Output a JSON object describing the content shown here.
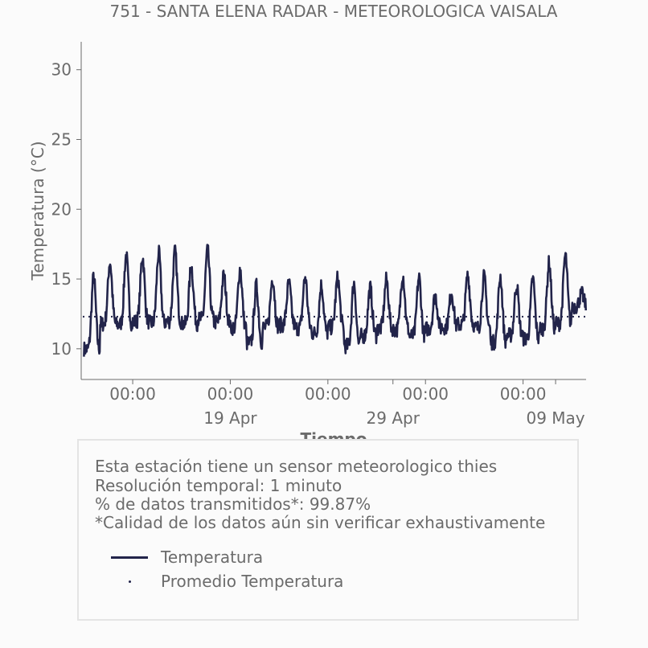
{
  "chart_data": {
    "type": "line",
    "title": "751 - SANTA ELENA RADAR - METEOROLOGICA VAISALA",
    "xlabel": "Tiempo",
    "ylabel": "Temperatura (°C)",
    "ylim": [
      7.8,
      32
    ],
    "xlim": [
      "2025-04-09T20:00",
      "2025-05-10T21:00"
    ],
    "y_ticks": [
      10,
      15,
      20,
      25,
      30
    ],
    "x_ticks": [
      {
        "time": "2025-04-13T00:00",
        "label": "00:00",
        "date_label": ""
      },
      {
        "time": "2025-04-19T00:00",
        "label": "00:00",
        "date_label": "19 Apr"
      },
      {
        "time": "2025-04-25T00:00",
        "label": "00:00",
        "date_label": ""
      },
      {
        "time": "2025-05-01T00:00",
        "label": "00:00",
        "date_label": ""
      },
      {
        "time": "2025-05-07T00:00",
        "label": "00:00",
        "date_label": ""
      }
    ],
    "minor_ticks": [
      {
        "time": "2025-04-29T00:00",
        "date_label": "29 Apr"
      },
      {
        "time": "2025-05-09T00:00",
        "date_label": "09 May"
      }
    ],
    "grid": false,
    "series": [
      {
        "name": "Temperatura",
        "color": "#22244a",
        "style": "solid",
        "x": [
          "2025-04-09",
          "2025-04-10",
          "2025-04-11",
          "2025-04-12",
          "2025-04-13",
          "2025-04-14",
          "2025-04-15",
          "2025-04-16",
          "2025-04-17",
          "2025-04-18",
          "2025-04-19",
          "2025-04-20",
          "2025-04-21",
          "2025-04-22",
          "2025-04-23",
          "2025-04-24",
          "2025-04-25",
          "2025-04-26",
          "2025-04-27",
          "2025-04-28",
          "2025-04-29",
          "2025-04-30",
          "2025-05-01",
          "2025-05-02",
          "2025-05-03",
          "2025-05-04",
          "2025-05-05",
          "2025-05-06",
          "2025-05-07",
          "2025-05-08",
          "2025-05-09",
          "2025-05-10"
        ],
        "daily_min": [
          10.5,
          8.6,
          10.6,
          10.4,
          10.7,
          10.5,
          10.6,
          10.7,
          10.8,
          11.0,
          10.4,
          9.3,
          10.6,
          10.9,
          10.5,
          10.2,
          10.6,
          9.0,
          10.0,
          10.5,
          10.3,
          9.8,
          10.8,
          10.9,
          10.8,
          10.5,
          9.2,
          10.0,
          9.6,
          10.2,
          10.5,
          12.8
        ],
        "daily_max": [
          11.0,
          15.5,
          16.5,
          17.0,
          16.9,
          17.2,
          17.3,
          16.2,
          17.4,
          15.5,
          16.0,
          14.8,
          15.3,
          14.9,
          15.4,
          14.8,
          15.3,
          15.0,
          14.6,
          15.2,
          15.6,
          15.4,
          14.0,
          14.2,
          15.5,
          15.4,
          15.5,
          14.8,
          15.3,
          16.5,
          17.0,
          14.0
        ]
      },
      {
        "name": "Promedio Temperatura",
        "color": "#22244a",
        "style": "dotted",
        "value": 12.3
      }
    ]
  },
  "info": {
    "line1": "Esta estación tiene un sensor meteorologico thies",
    "line2": "Resolución temporal: 1 minuto",
    "line3": "% de datos transmitidos*: 99.87%",
    "line4": "*Calidad de los datos aún sin verificar exhaustivamente"
  },
  "legend": {
    "line_label": "Temperatura",
    "dot_label": "Promedio Temperatura"
  }
}
